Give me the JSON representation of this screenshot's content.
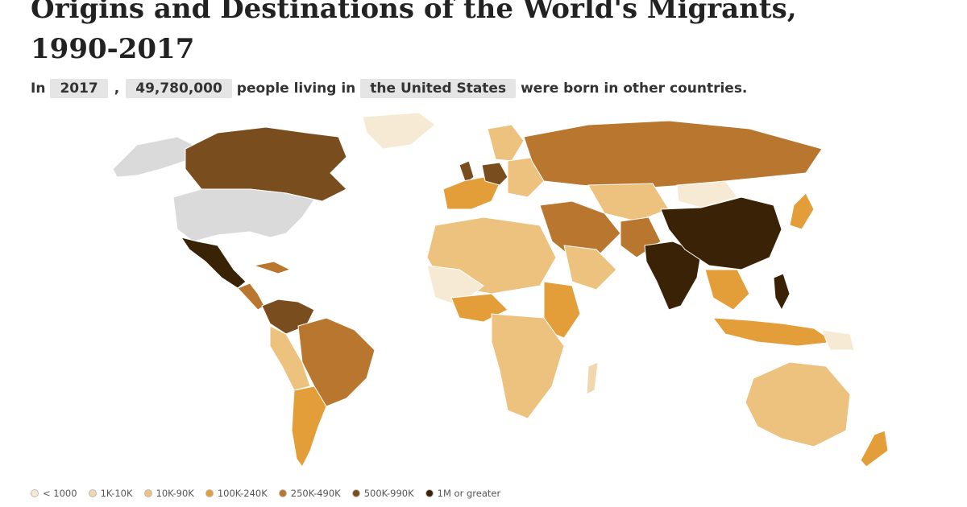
{
  "title": {
    "line1": "Origins and Destinations of the World's Migrants,",
    "line2": "1990-2017"
  },
  "sentence": {
    "prefix": "In",
    "year": "2017",
    "comma": ",",
    "count": "49,780,000",
    "middle": "people living in",
    "country": "the United States",
    "suffix": "were born in other countries."
  },
  "legend": [
    {
      "label": "< 1000",
      "color": "#f7ead4"
    },
    {
      "label": "1K-10K",
      "color": "#f1d7ad"
    },
    {
      "label": "10K-90K",
      "color": "#edc17e"
    },
    {
      "label": "100K-240K",
      "color": "#e39e3a"
    },
    {
      "label": "250K-490K",
      "color": "#b8762e"
    },
    {
      "label": "500K-990K",
      "color": "#7a4d1e"
    },
    {
      "label": "1M or greater",
      "color": "#3a2207"
    }
  ],
  "colors": {
    "selected_country": "#dadada",
    "no_data": "#f5efe6",
    "ocean": "#ffffff"
  }
}
